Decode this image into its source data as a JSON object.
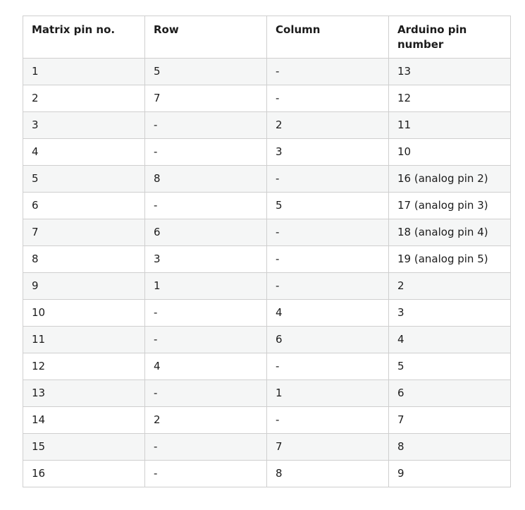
{
  "table": {
    "headers": [
      "Matrix pin no.",
      "Row",
      "Column",
      "Arduino pin number"
    ],
    "rows": [
      [
        "1",
        "5",
        "-",
        "13"
      ],
      [
        "2",
        "7",
        "-",
        "12"
      ],
      [
        "3",
        "-",
        "2",
        "11"
      ],
      [
        "4",
        "-",
        "3",
        "10"
      ],
      [
        "5",
        "8",
        "-",
        "16 (analog pin 2)"
      ],
      [
        "6",
        "-",
        "5",
        "17 (analog pin 3)"
      ],
      [
        "7",
        "6",
        "-",
        "18 (analog pin 4)"
      ],
      [
        "8",
        "3",
        "-",
        "19 (analog pin 5)"
      ],
      [
        "9",
        "1",
        "-",
        "2"
      ],
      [
        "10",
        "-",
        "4",
        "3"
      ],
      [
        "11",
        "-",
        "6",
        "4"
      ],
      [
        "12",
        "4",
        "-",
        "5"
      ],
      [
        "13",
        "-",
        "1",
        "6"
      ],
      [
        "14",
        "2",
        "-",
        "7"
      ],
      [
        "15",
        "-",
        "7",
        "8"
      ],
      [
        "16",
        "-",
        "8",
        "9"
      ]
    ]
  },
  "colors": {
    "border": "#cfcfcf",
    "stripe": "#f5f6f6",
    "text": "#1c1c1c"
  }
}
